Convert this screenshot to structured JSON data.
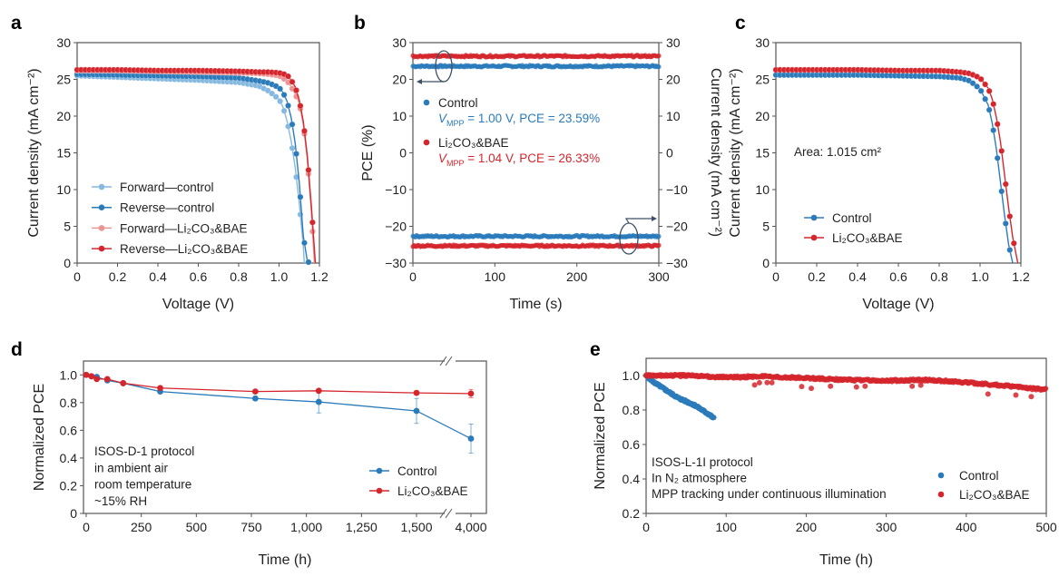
{
  "colors": {
    "control_light": "#86b9df",
    "control": "#2b7bbb",
    "li_light": "#ec9494",
    "li": "#d5262d",
    "axis": "#555555",
    "annotation": "#3d4f66"
  },
  "panel_labels": [
    "a",
    "b",
    "c",
    "d",
    "e"
  ],
  "chart_data": [
    {
      "panel": "a",
      "type": "line",
      "xlabel": "Voltage (V)",
      "ylabel": "Current density (mA cm⁻²)",
      "xlim": [
        0,
        1.2
      ],
      "ylim": [
        0,
        30
      ],
      "x_ticks": [
        0,
        0.2,
        0.4,
        0.6,
        0.8,
        1.0,
        1.2
      ],
      "x_tick_labels": [
        "0",
        "0.2",
        "0.4",
        "0.6",
        "0.8",
        "1.0",
        "1.2"
      ],
      "y_ticks": [
        0,
        5,
        10,
        15,
        20,
        25,
        30
      ],
      "y_tick_labels": [
        "0",
        "5",
        "10",
        "15",
        "20",
        "25",
        "30"
      ],
      "legend": "bottom-left",
      "series": [
        {
          "name": "Forward—control",
          "color": "#86b9df",
          "x": [
            0,
            0.2,
            0.4,
            0.6,
            0.8,
            0.9,
            0.95,
            1.0,
            1.02,
            1.04,
            1.06,
            1.08,
            1.1,
            1.12,
            1.125
          ],
          "y": [
            25.5,
            25.3,
            25.1,
            24.9,
            24.6,
            24.1,
            23.4,
            22.3,
            21.2,
            19.3,
            16.6,
            13.0,
            8.2,
            2.4,
            0
          ]
        },
        {
          "name": "Reverse—control",
          "color": "#2b7bbb",
          "x": [
            0,
            0.2,
            0.4,
            0.6,
            0.8,
            0.9,
            0.95,
            1.0,
            1.02,
            1.04,
            1.06,
            1.08,
            1.1,
            1.12,
            1.14,
            1.15
          ],
          "y": [
            25.7,
            25.6,
            25.5,
            25.4,
            25.2,
            24.8,
            24.5,
            23.9,
            23.2,
            22.0,
            19.8,
            16.3,
            11.0,
            3.7,
            0.3,
            0
          ]
        },
        {
          "name": "Forward—Li₂CO₃&BAE",
          "color": "#ec9494",
          "x": [
            0,
            0.2,
            0.4,
            0.6,
            0.8,
            0.9,
            0.95,
            1.0,
            1.04,
            1.06,
            1.08,
            1.1,
            1.12,
            1.14,
            1.16,
            1.175
          ],
          "y": [
            26.2,
            26.2,
            26.1,
            26.0,
            25.9,
            25.8,
            25.7,
            25.5,
            24.8,
            24.0,
            23.0,
            21.8,
            18.9,
            14.2,
            7.0,
            0
          ]
        },
        {
          "name": "Reverse—Li₂CO₃&BAE",
          "color": "#d5262d",
          "x": [
            0,
            0.2,
            0.4,
            0.6,
            0.8,
            0.9,
            0.95,
            1.0,
            1.04,
            1.06,
            1.08,
            1.1,
            1.12,
            1.14,
            1.16,
            1.18
          ],
          "y": [
            26.3,
            26.3,
            26.2,
            26.2,
            26.1,
            26.0,
            26.0,
            25.9,
            25.6,
            24.9,
            24.0,
            22.2,
            19.3,
            14.6,
            7.8,
            0
          ]
        }
      ]
    },
    {
      "panel": "b",
      "type": "scatter",
      "xlabel": "Time (s)",
      "ylabel": "PCE (%)",
      "y2label": "Current density (mA cm⁻²)",
      "xlim": [
        0,
        300
      ],
      "ylim": [
        -30,
        30
      ],
      "y2lim": [
        -30,
        30
      ],
      "x_ticks": [
        0,
        100,
        200,
        300
      ],
      "x_tick_labels": [
        "0",
        "100",
        "200",
        "300"
      ],
      "y_ticks": [
        -30,
        -20,
        -10,
        0,
        10,
        20,
        30
      ],
      "y_tick_labels": [
        "−30",
        "−20",
        "−10",
        "0",
        "10",
        "20",
        "30"
      ],
      "series": [
        {
          "name": "Control",
          "color": "#2b7bbb",
          "pce": 23.59,
          "current_density": -22.7,
          "annotation_v": "V",
          "annotation_sub": "MPP",
          "annotation_rest": " = 1.00 V, PCE = 23.59%"
        },
        {
          "name": "Li₂CO₃&BAE",
          "color": "#d5262d",
          "pce": 26.33,
          "current_density": -25.3,
          "annotation_v": "V",
          "annotation_sub": "MPP",
          "annotation_rest": " = 1.04 V, PCE = 26.33%"
        }
      ]
    },
    {
      "panel": "c",
      "type": "line",
      "xlabel": "Voltage (V)",
      "ylabel": "Current density (mA cm⁻²)",
      "xlim": [
        0,
        1.2
      ],
      "ylim": [
        0,
        30
      ],
      "x_ticks": [
        0,
        0.2,
        0.4,
        0.6,
        0.8,
        1.0,
        1.2
      ],
      "x_tick_labels": [
        "0",
        "0.2",
        "0.4",
        "0.6",
        "0.8",
        "1.0",
        "1.2"
      ],
      "y_ticks": [
        0,
        5,
        10,
        15,
        20,
        25,
        30
      ],
      "y_tick_labels": [
        "0",
        "5",
        "10",
        "15",
        "20",
        "25",
        "30"
      ],
      "annotation": "Area: 1.015 cm²",
      "legend": "bottom-left",
      "series": [
        {
          "name": "Control",
          "color": "#2b7bbb",
          "x": [
            0,
            0.2,
            0.4,
            0.6,
            0.8,
            0.9,
            0.95,
            1.0,
            1.04,
            1.06,
            1.08,
            1.1,
            1.12,
            1.14,
            1.16
          ],
          "y": [
            25.6,
            25.6,
            25.6,
            25.5,
            25.4,
            25.2,
            24.8,
            23.7,
            21.5,
            19.0,
            15.5,
            11.0,
            6.5,
            2.5,
            0
          ]
        },
        {
          "name": "Li₂CO₃&BAE",
          "color": "#d5262d",
          "x": [
            0,
            0.2,
            0.4,
            0.6,
            0.8,
            0.9,
            0.95,
            1.0,
            1.04,
            1.06,
            1.08,
            1.1,
            1.12,
            1.14,
            1.16,
            1.185
          ],
          "y": [
            26.3,
            26.3,
            26.3,
            26.2,
            26.2,
            26.0,
            25.8,
            25.2,
            23.8,
            22.3,
            19.8,
            16.5,
            12.0,
            7.5,
            3.5,
            0
          ]
        }
      ]
    },
    {
      "panel": "d",
      "type": "line",
      "xlabel": "Time (h)",
      "ylabel": "Normalized PCE",
      "ylim": [
        0,
        1.1
      ],
      "x_axis_break": [
        1500,
        4000
      ],
      "x_ticks": [
        0,
        250,
        500,
        750,
        1000,
        1250,
        1500,
        4000
      ],
      "x_tick_labels": [
        "0",
        "250",
        "500",
        "750",
        "1,000",
        "1,250",
        "1,500",
        "4,000"
      ],
      "y_ticks": [
        0,
        0.2,
        0.4,
        0.6,
        0.8,
        1.0
      ],
      "y_tick_labels": [
        "0",
        "0.2",
        "0.4",
        "0.6",
        "0.8",
        "1.0"
      ],
      "annotation": [
        "ISOS-D-1 protocol",
        "in ambient air",
        "room temperature",
        "~15% RH"
      ],
      "legend": "bottom-right",
      "series": [
        {
          "name": "Control",
          "color": "#2b7bbb",
          "x": [
            0,
            24,
            48,
            96,
            168,
            336,
            768,
            1056,
            1500,
            4000
          ],
          "y": [
            1.0,
            0.99,
            0.985,
            0.96,
            0.94,
            0.88,
            0.83,
            0.805,
            0.74,
            0.54
          ],
          "err": [
            0,
            0.01,
            0.01,
            0.01,
            0.01,
            0.01,
            0.015,
            0.08,
            0.09,
            0.105
          ]
        },
        {
          "name": "Li₂CO₃&BAE",
          "color": "#d5262d",
          "x": [
            0,
            24,
            48,
            96,
            168,
            336,
            768,
            1056,
            1500,
            4000
          ],
          "y": [
            1.0,
            0.99,
            0.97,
            0.97,
            0.94,
            0.905,
            0.88,
            0.885,
            0.87,
            0.865
          ],
          "err": [
            0,
            0.01,
            0.01,
            0.01,
            0.01,
            0.01,
            0.01,
            0.01,
            0.015,
            0.03
          ]
        }
      ]
    },
    {
      "panel": "e",
      "type": "scatter",
      "xlabel": "Time (h)",
      "ylabel": "Normalized PCE",
      "xlim": [
        0,
        500
      ],
      "ylim": [
        0.2,
        1.1
      ],
      "x_ticks": [
        0,
        100,
        200,
        300,
        400,
        500
      ],
      "x_tick_labels": [
        "0",
        "100",
        "200",
        "300",
        "400",
        "500"
      ],
      "y_ticks": [
        0.2,
        0.4,
        0.6,
        0.8,
        1.0
      ],
      "y_tick_labels": [
        "0.2",
        "0.4",
        "0.6",
        "0.8",
        "1.0"
      ],
      "annotation": [
        "ISOS-L-1I protocol",
        "In N₂ atmosphere",
        "MPP tracking under continuous illumination"
      ],
      "legend": "bottom-right",
      "series": [
        {
          "name": "Control",
          "color": "#2b7bbb",
          "x": [
            0,
            10,
            20,
            30,
            40,
            50,
            60,
            70,
            80,
            85
          ],
          "y": [
            1.0,
            0.96,
            0.93,
            0.9,
            0.87,
            0.85,
            0.83,
            0.8,
            0.77,
            0.75
          ]
        },
        {
          "name": "Li₂CO₃&BAE",
          "color": "#d5262d",
          "x": [
            0,
            50,
            100,
            150,
            200,
            250,
            300,
            350,
            400,
            450,
            480,
            500
          ],
          "y": [
            1.0,
            1.0,
            0.99,
            0.995,
            0.985,
            0.975,
            0.97,
            0.975,
            0.96,
            0.94,
            0.925,
            0.92
          ]
        }
      ]
    }
  ]
}
